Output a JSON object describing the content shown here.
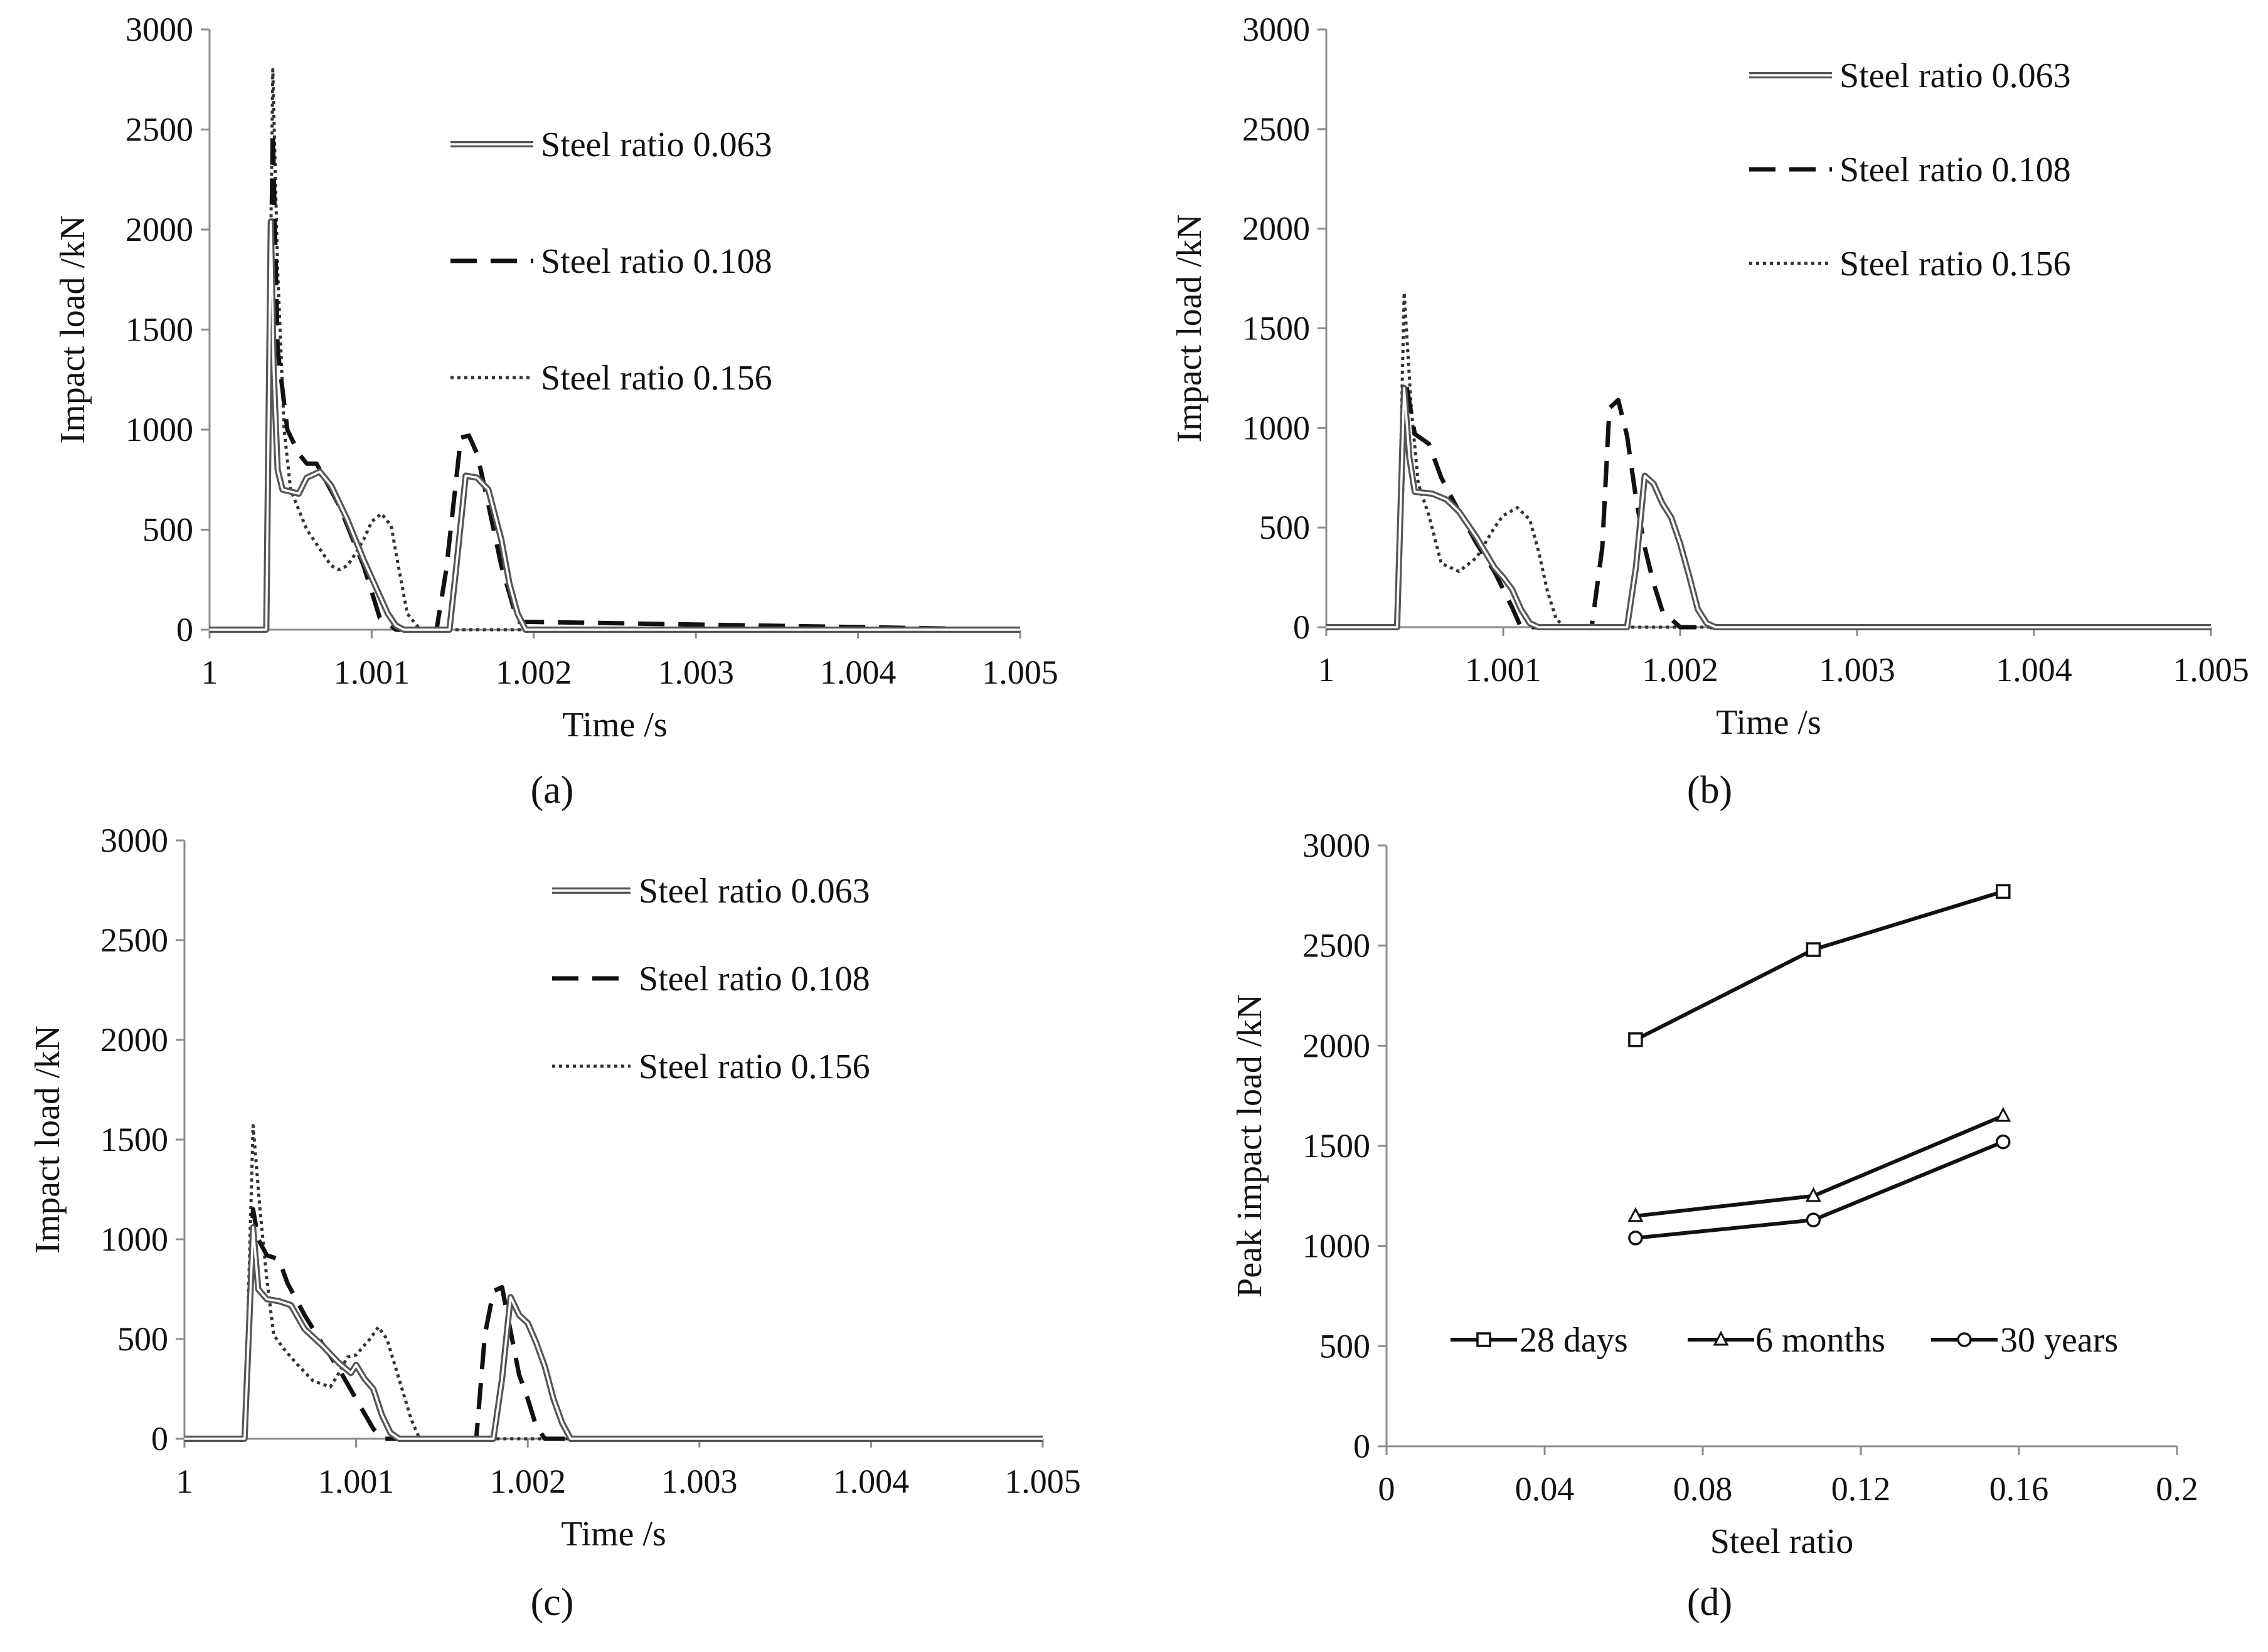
{
  "figure": {
    "panels": [
      "(a)",
      "(b)",
      "(c)",
      "(d)"
    ]
  },
  "colors": {
    "series_063_outer": "#555555",
    "series_063_inner": "#ffffff",
    "series_108": "#111111",
    "series_156": "#333333",
    "axis": "#8c8c8c",
    "text": "#111111"
  },
  "chart_data": [
    {
      "id": "a",
      "type": "line",
      "label": "(a)",
      "title": "",
      "xlabel": "Time /s",
      "ylabel": "Impact load /kN",
      "xlim": [
        1,
        1.005
      ],
      "ylim": [
        0,
        3000
      ],
      "xticks": [
        1,
        1.001,
        1.002,
        1.003,
        1.004,
        1.005
      ],
      "xtick_labels": [
        "1",
        "1.001",
        "1.002",
        "1.003",
        "1.004",
        "1.005"
      ],
      "yticks": [
        0,
        500,
        1000,
        1500,
        2000,
        2500,
        3000
      ],
      "ytick_labels": [
        "0",
        "500",
        "1000",
        "1500",
        "2000",
        "2500",
        "3000"
      ],
      "legend": [
        "Steel ratio 0.063",
        "Steel ratio 0.108",
        "Steel ratio 0.156"
      ],
      "series": [
        {
          "name": "Steel ratio 0.063",
          "style": "double",
          "x": [
            1,
            1.00035,
            1.000378,
            1.000395,
            1.00042,
            1.00045,
            1.00055,
            1.0006,
            1.00068,
            1.00075,
            1.00085,
            1.00095,
            1.001,
            1.00105,
            1.0011,
            1.00115,
            1.0012,
            1.0013,
            1.00148,
            1.00152,
            1.00158,
            1.00165,
            1.00172,
            1.0018,
            1.00185,
            1.0019,
            1.00195,
            1.005
          ],
          "y": [
            0,
            0,
            2040,
            1300,
            800,
            700,
            680,
            760,
            790,
            720,
            550,
            350,
            260,
            170,
            80,
            20,
            0,
            0,
            0,
            300,
            770,
            760,
            700,
            450,
            230,
            80,
            0,
            0
          ]
        },
        {
          "name": "Steel ratio 0.108",
          "style": "dash",
          "x": [
            1,
            1.00035,
            1.00039,
            1.00042,
            1.00048,
            1.00055,
            1.0006,
            1.00066,
            1.0008,
            1.00095,
            1.00105,
            1.00115,
            1.0012,
            1.0014,
            1.00146,
            1.00155,
            1.0016,
            1.00165,
            1.0017,
            1.0018,
            1.0019,
            1.005
          ],
          "y": [
            0,
            0,
            2490,
            1400,
            1000,
            880,
            830,
            830,
            620,
            320,
            60,
            0,
            0,
            0,
            300,
            960,
            970,
            880,
            700,
            320,
            40,
            0
          ]
        },
        {
          "name": "Steel ratio 0.156",
          "style": "dot",
          "x": [
            1,
            1.00035,
            1.00039,
            1.00042,
            1.00046,
            1.0005,
            1.00055,
            1.0006,
            1.0007,
            1.00075,
            1.0008,
            1.00085,
            1.0009,
            1.00095,
            1.001,
            1.00106,
            1.00112,
            1.00116,
            1.00122,
            1.0013,
            1.005
          ],
          "y": [
            0,
            0,
            2800,
            1800,
            1000,
            700,
            600,
            500,
            380,
            320,
            300,
            320,
            380,
            450,
            540,
            580,
            520,
            340,
            80,
            0,
            0
          ]
        }
      ]
    },
    {
      "id": "b",
      "type": "line",
      "label": "(b)",
      "title": "",
      "xlabel": "Time /s",
      "ylabel": "Impact load /kN",
      "xlim": [
        1,
        1.005
      ],
      "ylim": [
        0,
        3000
      ],
      "xticks": [
        1,
        1.001,
        1.002,
        1.003,
        1.004,
        1.005
      ],
      "xtick_labels": [
        "1",
        "1.001",
        "1.002",
        "1.003",
        "1.004",
        "1.005"
      ],
      "yticks": [
        0,
        500,
        1000,
        1500,
        2000,
        2500,
        3000
      ],
      "ytick_labels": [
        "0",
        "500",
        "1000",
        "1500",
        "2000",
        "2500",
        "3000"
      ],
      "legend": [
        "Steel ratio 0.063",
        "Steel ratio 0.108",
        "Steel ratio 0.156"
      ],
      "series": [
        {
          "name": "Steel ratio 0.063",
          "style": "double",
          "x": [
            1,
            1.0004,
            1.00044,
            1.00047,
            1.0005,
            1.0006,
            1.00068,
            1.00075,
            1.00085,
            1.00095,
            1.001,
            1.00105,
            1.0011,
            1.00115,
            1.0012,
            1.0017,
            1.00175,
            1.0018,
            1.00185,
            1.0019,
            1.00195,
            1.002,
            1.00205,
            1.0021,
            1.00215,
            1.0022,
            1.005
          ],
          "y": [
            0,
            0,
            1200,
            850,
            680,
            670,
            640,
            580,
            450,
            300,
            250,
            190,
            90,
            20,
            0,
            0,
            300,
            760,
            720,
            620,
            550,
            420,
            260,
            90,
            20,
            0,
            0
          ]
        },
        {
          "name": "Steel ratio 0.108",
          "style": "dash",
          "x": [
            1,
            1.0004,
            1.00045,
            1.0005,
            1.00058,
            1.00065,
            1.00075,
            1.00085,
            1.00095,
            1.00105,
            1.0011,
            1.0015,
            1.00156,
            1.0016,
            1.00165,
            1.0017,
            1.00175,
            1.0018,
            1.00185,
            1.0019,
            1.002,
            1.005
          ],
          "y": [
            0,
            0,
            1230,
            970,
            920,
            750,
            580,
            420,
            280,
            100,
            0,
            0,
            400,
            1100,
            1140,
            960,
            650,
            400,
            220,
            80,
            0,
            0
          ]
        },
        {
          "name": "Steel ratio 0.156",
          "style": "dot",
          "x": [
            1,
            1.0004,
            1.00044,
            1.00048,
            1.00052,
            1.00058,
            1.00065,
            1.00075,
            1.00085,
            1.00095,
            1.001,
            1.00108,
            1.00115,
            1.0012,
            1.00125,
            1.0013,
            1.00135,
            1.005
          ],
          "y": [
            0,
            0,
            1680,
            1100,
            720,
            560,
            320,
            280,
            350,
            500,
            560,
            600,
            540,
            380,
            180,
            40,
            0,
            0
          ]
        }
      ]
    },
    {
      "id": "c",
      "type": "line",
      "label": "(c)",
      "title": "",
      "xlabel": "Time /s",
      "ylabel": "Impact load /kN",
      "xlim": [
        1,
        1.005
      ],
      "ylim": [
        0,
        3000
      ],
      "xticks": [
        1,
        1.001,
        1.002,
        1.003,
        1.004,
        1.005
      ],
      "xtick_labels": [
        "1",
        "1.001",
        "1.002",
        "1.003",
        "1.004",
        "1.005"
      ],
      "yticks": [
        0,
        500,
        1000,
        1500,
        2000,
        2500,
        3000
      ],
      "ytick_labels": [
        "0",
        "500",
        "1000",
        "1500",
        "2000",
        "2500",
        "3000"
      ],
      "legend": [
        "Steel ratio 0.063",
        "Steel ratio 0.108",
        "Steel ratio 0.156"
      ],
      "series": [
        {
          "name": "Steel ratio 0.063",
          "style": "double",
          "x": [
            1,
            1.00035,
            1.0004,
            1.00043,
            1.00048,
            1.00055,
            1.00062,
            1.0007,
            1.0008,
            1.0009,
            1.00097,
            1.001,
            1.00105,
            1.0011,
            1.00115,
            1.0012,
            1.00125,
            1.0018,
            1.00185,
            1.0019,
            1.00195,
            1.002,
            1.00205,
            1.0021,
            1.00215,
            1.0022,
            1.00225,
            1.005
          ],
          "y": [
            0,
            0,
            1060,
            750,
            700,
            690,
            670,
            550,
            470,
            380,
            330,
            370,
            300,
            250,
            120,
            30,
            0,
            0,
            300,
            710,
            620,
            580,
            480,
            360,
            200,
            80,
            0,
            0
          ]
        },
        {
          "name": "Steel ratio 0.108",
          "style": "dash",
          "x": [
            1,
            1.00035,
            1.0004,
            1.00043,
            1.00048,
            1.00055,
            1.0006,
            1.0007,
            1.0008,
            1.0009,
            1.001,
            1.0011,
            1.00115,
            1.0012,
            1.0017,
            1.00175,
            1.0018,
            1.00185,
            1.0019,
            1.00195,
            1.002,
            1.00205,
            1.0021,
            1.005
          ],
          "y": [
            0,
            0,
            1150,
            1000,
            920,
            900,
            780,
            620,
            480,
            350,
            200,
            50,
            0,
            0,
            0,
            520,
            740,
            760,
            540,
            320,
            200,
            60,
            0,
            0
          ]
        },
        {
          "name": "Steel ratio 0.156",
          "style": "dot",
          "x": [
            1,
            1.00035,
            1.0004,
            1.00044,
            1.00048,
            1.00052,
            1.00058,
            1.00065,
            1.00075,
            1.00085,
            1.0009,
            1.00095,
            1.001,
            1.00108,
            1.00113,
            1.00118,
            1.00125,
            1.00132,
            1.00137,
            1.005
          ],
          "y": [
            0,
            0,
            1570,
            1150,
            800,
            520,
            450,
            380,
            290,
            260,
            330,
            410,
            420,
            500,
            560,
            500,
            300,
            100,
            0,
            0
          ]
        }
      ]
    },
    {
      "id": "d",
      "type": "line",
      "label": "(d)",
      "title": "",
      "xlabel": "Steel ratio",
      "ylabel": "Peak impact load /kN",
      "xlim": [
        0,
        0.2
      ],
      "ylim": [
        0,
        3000
      ],
      "xticks": [
        0,
        0.04,
        0.08,
        0.12,
        0.16,
        0.2
      ],
      "xtick_labels": [
        "0",
        "0.04",
        "0.08",
        "0.12",
        "0.16",
        "0.2"
      ],
      "yticks": [
        0,
        500,
        1000,
        1500,
        2000,
        2500,
        3000
      ],
      "ytick_labels": [
        "0",
        "500",
        "1000",
        "1500",
        "2000",
        "2500",
        "3000"
      ],
      "legend": [
        "28 days",
        "6 months",
        "30 years"
      ],
      "x": [
        0.063,
        0.108,
        0.156
      ],
      "series": [
        {
          "name": "28 days",
          "marker": "square",
          "values": [
            2030,
            2480,
            2770
          ]
        },
        {
          "name": "6 months",
          "marker": "triangle",
          "values": [
            1150,
            1250,
            1650
          ]
        },
        {
          "name": "30 years",
          "marker": "circle",
          "values": [
            1040,
            1130,
            1520
          ]
        }
      ]
    }
  ]
}
